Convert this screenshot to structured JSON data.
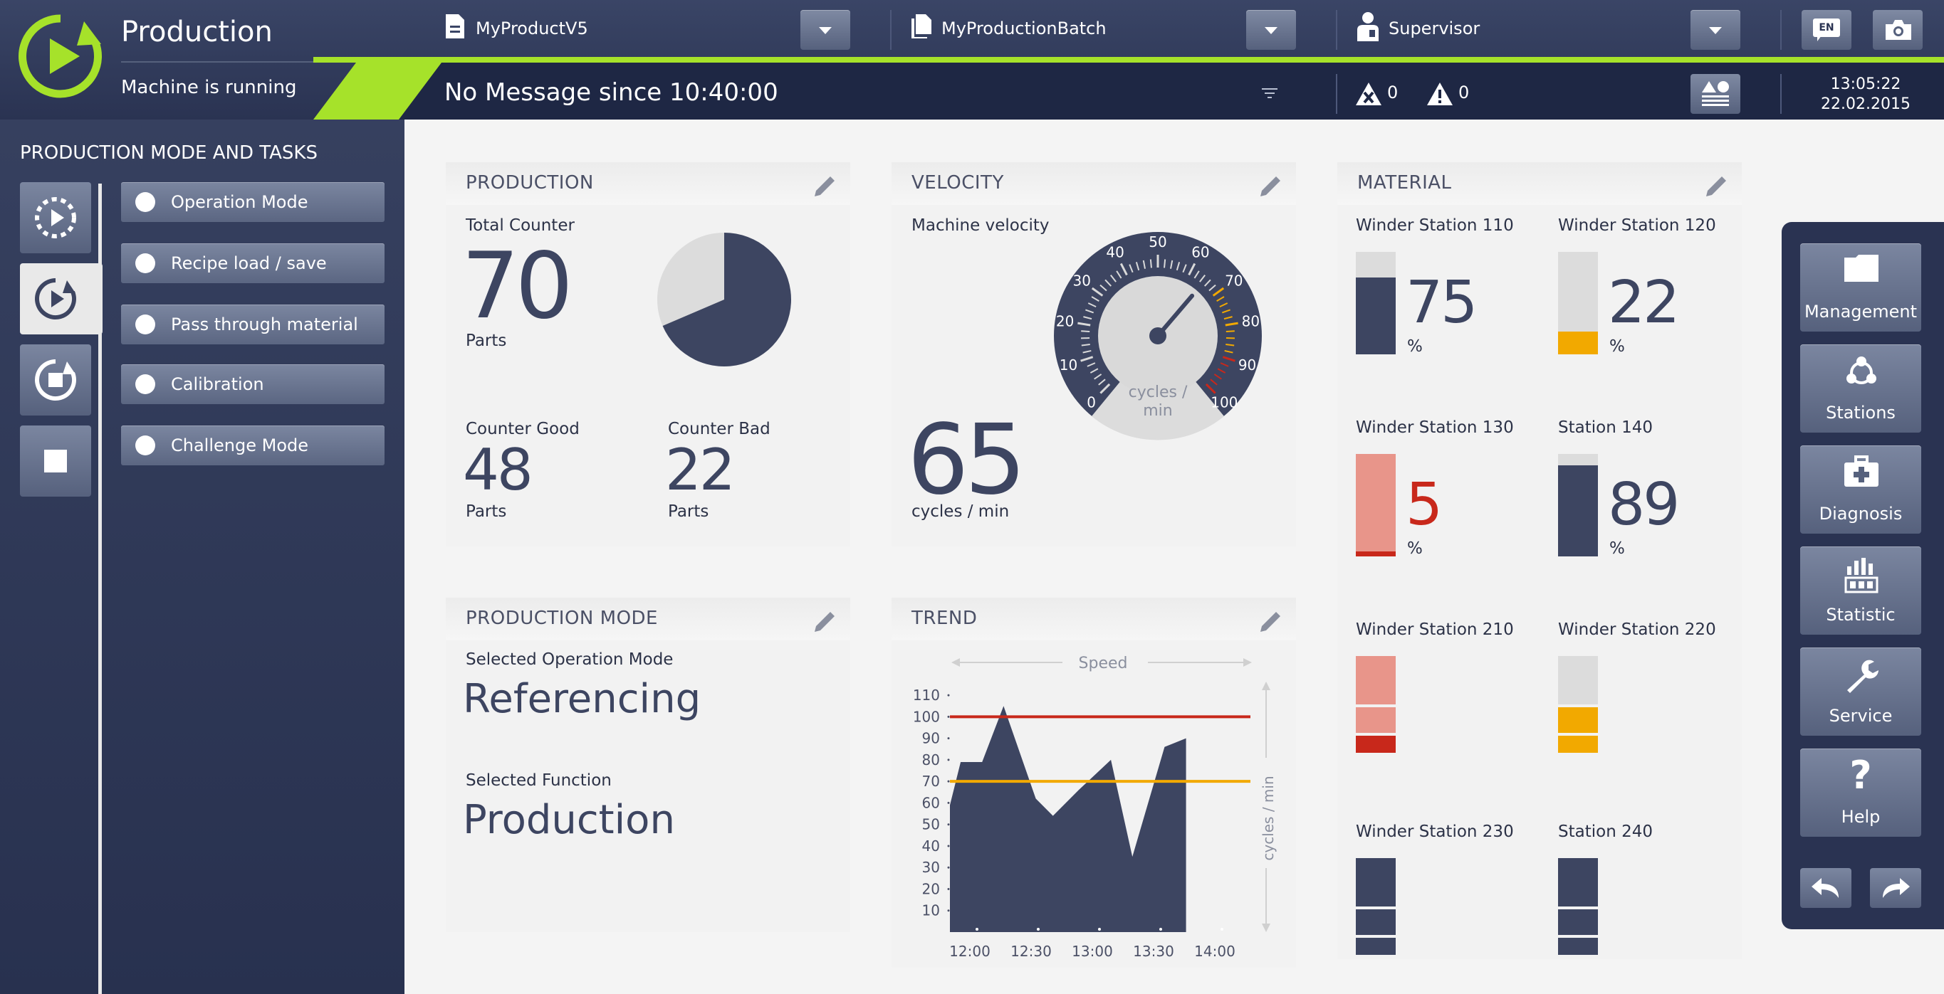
{
  "header": {
    "app_title": "Production",
    "app_status": "Machine is running",
    "product": "MyProductV5",
    "batch": "MyProductionBatch",
    "user": "Supervisor",
    "language": "EN",
    "message": "No Message since 10:40:00",
    "error_count": "0",
    "warning_count": "0",
    "time": "13:05:22",
    "date": "22.02.2015",
    "accent_color": "#a6e22a"
  },
  "sidebar": {
    "title": "PRODUCTION MODE AND TASKS",
    "tasks": [
      {
        "label": "Operation Mode"
      },
      {
        "label": "Recipe load / save"
      },
      {
        "label": "Pass through material"
      },
      {
        "label": "Calibration"
      },
      {
        "label": "Challenge Mode"
      }
    ]
  },
  "production": {
    "title": "PRODUCTION",
    "total_label": "Total Counter",
    "total_value": "70",
    "total_unit": "Parts",
    "good_label": "Counter Good",
    "good_value": "48",
    "good_unit": "Parts",
    "bad_label": "Counter Bad",
    "bad_value": "22",
    "bad_unit": "Parts"
  },
  "velocity": {
    "title": "VELOCITY",
    "label": "Machine velocity",
    "value": "65",
    "unit": "cycles / min",
    "gauge_unit_line1": "cycles /",
    "gauge_unit_line2": "min",
    "gauge_ticks": [
      "0",
      "10",
      "20",
      "30",
      "40",
      "50",
      "60",
      "70",
      "80",
      "90",
      "100"
    ]
  },
  "material": {
    "title": "MATERIAL",
    "stations": [
      {
        "name": "Winder Station 110",
        "value": "75",
        "unit": "%",
        "level": 0.75
      },
      {
        "name": "Winder Station 120",
        "value": "22",
        "unit": "%",
        "level": 0.22
      },
      {
        "name": "Winder Station 130",
        "value": "5",
        "unit": "%",
        "level": 0.05
      },
      {
        "name": "Station 140",
        "value": "89",
        "unit": "%",
        "level": 0.89
      },
      {
        "name": "Winder Station 210"
      },
      {
        "name": "Winder Station 220"
      },
      {
        "name": "Winder Station 230"
      },
      {
        "name": "Station 240"
      }
    ]
  },
  "production_mode": {
    "title": "PRODUCTION MODE",
    "op_label": "Selected Operation Mode",
    "op_value": "Referencing",
    "fn_label": "Selected Function",
    "fn_value": "Production"
  },
  "trend": {
    "title": "TREND",
    "speed_label": "Speed",
    "unit_label": "cycles / min"
  },
  "chart_data": {
    "type": "area",
    "x": [
      "11:55",
      "12:00",
      "12:10",
      "12:20",
      "12:35",
      "12:43",
      "12:55",
      "13:10",
      "13:20",
      "13:35",
      "13:45",
      "14:05",
      "14:15"
    ],
    "values": [
      59,
      79,
      79,
      105,
      62,
      54,
      66,
      80,
      35,
      86,
      90,
      0,
      0
    ],
    "x_ticks": [
      "12:00",
      "12:30",
      "13:00",
      "13:30",
      "14:00"
    ],
    "y_ticks": [
      "10",
      "20",
      "30",
      "40",
      "50",
      "60",
      "70",
      "80",
      "90",
      "100",
      "110"
    ],
    "ylim": [
      0,
      115
    ],
    "limit_upper": 100,
    "limit_lower": 70,
    "colors": {
      "area": "#3d4561",
      "upper": "#c8281b",
      "lower": "#f2a900"
    }
  },
  "rightnav": {
    "items": [
      {
        "label": "Management"
      },
      {
        "label": "Stations"
      },
      {
        "label": "Diagnosis"
      },
      {
        "label": "Statistic"
      },
      {
        "label": "Service"
      },
      {
        "label": "Help"
      }
    ]
  }
}
